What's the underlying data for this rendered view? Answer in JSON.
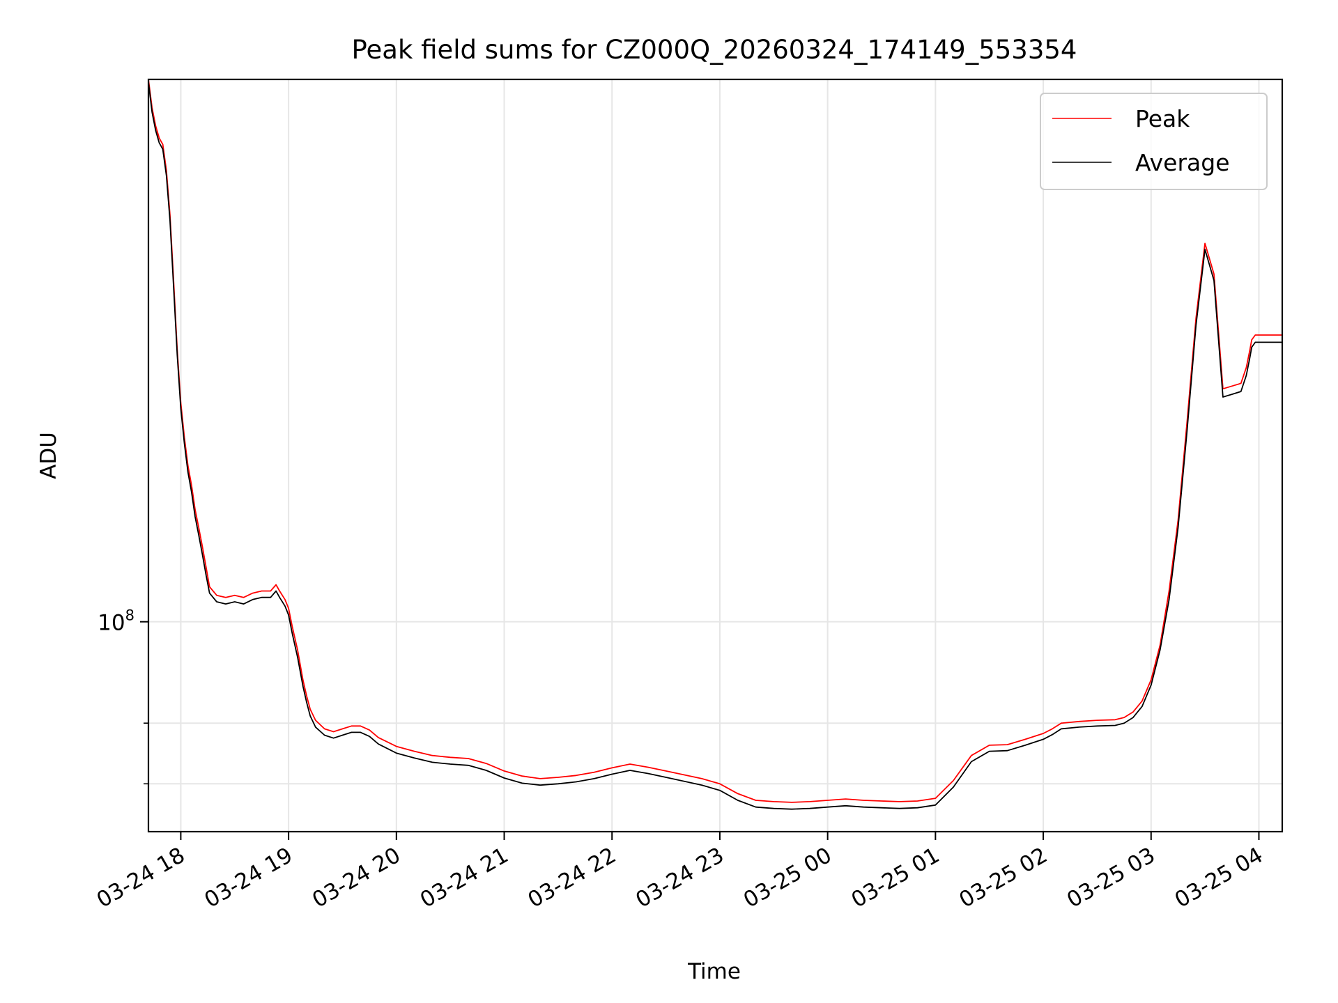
{
  "chart_data": {
    "type": "line",
    "title": "Peak field sums for CZ000Q_20260324_174149_553354",
    "xlabel": "Time",
    "ylabel": "ADU",
    "yscale": "log",
    "grid": true,
    "legend_placement": "upper-right",
    "x_ticks": [
      "03-24 18",
      "03-24 19",
      "03-24 20",
      "03-24 21",
      "03-24 22",
      "03-24 23",
      "03-25 00",
      "03-25 01",
      "03-25 02",
      "03-25 03",
      "03-25 04"
    ],
    "y_ticks_labeled": [
      {
        "value": 100000000,
        "base": "10",
        "exp": "8"
      }
    ],
    "y_minor_ticks": [
      80000000,
      70000000
    ],
    "x_range": [
      "2026-03-24 17:42",
      "2026-03-25 04:13"
    ],
    "y_range": [
      63000000,
      330000000
    ],
    "series": [
      {
        "name": "Peak",
        "color": "#ff0000",
        "x": [
          "17:42",
          "17:44",
          "17:46",
          "17:48",
          "17:50",
          "17:52",
          "17:54",
          "17:56",
          "17:58",
          "18:00",
          "18:02",
          "18:04",
          "18:06",
          "18:08",
          "18:10",
          "18:12",
          "18:14",
          "18:16",
          "18:20",
          "18:25",
          "18:30",
          "18:35",
          "18:40",
          "18:45",
          "18:50",
          "18:53",
          "18:55",
          "18:58",
          "19:00",
          "19:02",
          "19:05",
          "19:08",
          "19:10",
          "19:12",
          "19:15",
          "19:20",
          "19:25",
          "19:30",
          "19:35",
          "19:40",
          "19:45",
          "19:50",
          "20:00",
          "20:10",
          "20:20",
          "20:30",
          "20:40",
          "20:50",
          "21:00",
          "21:10",
          "21:20",
          "21:30",
          "21:40",
          "21:50",
          "22:00",
          "22:10",
          "22:20",
          "22:30",
          "22:40",
          "22:50",
          "23:00",
          "23:10",
          "23:20",
          "23:30",
          "23:40",
          "23:50",
          "00:00",
          "00:10",
          "00:20",
          "00:30",
          "00:40",
          "00:50",
          "01:00",
          "01:10",
          "01:20",
          "01:30",
          "01:40",
          "01:50",
          "02:00",
          "02:05",
          "02:10",
          "02:20",
          "02:30",
          "02:40",
          "02:45",
          "02:50",
          "02:55",
          "03:00",
          "03:05",
          "03:10",
          "03:15",
          "03:20",
          "03:25",
          "03:30",
          "03:35",
          "03:40",
          "03:45",
          "03:50",
          "03:53",
          "03:55",
          "03:56",
          "03:58",
          "04:00",
          "04:02",
          "04:05",
          "04:08",
          "04:10",
          "04:13"
        ],
        "y": [
          330000000,
          310000000,
          298000000,
          290000000,
          286000000,
          270000000,
          245000000,
          212000000,
          182000000,
          162000000,
          150000000,
          141000000,
          135000000,
          128000000,
          123000000,
          118000000,
          113000000,
          108000000,
          106000000,
          105500000,
          106000000,
          105500000,
          106500000,
          107000000,
          107000000,
          108500000,
          107000000,
          105000000,
          103000000,
          99000000,
          94000000,
          88000000,
          85000000,
          82500000,
          80500000,
          79000000,
          78500000,
          79000000,
          79500000,
          79500000,
          78800000,
          77500000,
          76000000,
          75200000,
          74500000,
          74200000,
          74000000,
          73200000,
          72000000,
          71200000,
          70800000,
          71000000,
          71300000,
          71800000,
          72500000,
          73100000,
          72600000,
          72000000,
          71400000,
          70800000,
          70000000,
          68500000,
          67500000,
          67300000,
          67200000,
          67300000,
          67500000,
          67700000,
          67500000,
          67400000,
          67300000,
          67400000,
          67800000,
          70500000,
          74500000,
          76200000,
          76300000,
          77200000,
          78200000,
          79000000,
          80000000,
          80300000,
          80500000,
          80600000,
          81000000,
          82000000,
          84000000,
          88000000,
          95000000,
          107000000,
          125000000,
          155000000,
          195000000,
          230000000,
          215000000,
          167000000,
          168000000,
          169000000,
          175000000,
          182000000,
          186000000,
          188000000,
          188000000,
          188000000,
          188000000,
          188000000,
          188000000,
          188000000
        ]
      },
      {
        "name": "Average",
        "color": "#000000",
        "x": [
          "17:42",
          "17:44",
          "17:46",
          "17:48",
          "17:50",
          "17:52",
          "17:54",
          "17:56",
          "17:58",
          "18:00",
          "18:02",
          "18:04",
          "18:06",
          "18:08",
          "18:10",
          "18:12",
          "18:14",
          "18:16",
          "18:20",
          "18:25",
          "18:30",
          "18:35",
          "18:40",
          "18:45",
          "18:50",
          "18:53",
          "18:55",
          "18:58",
          "19:00",
          "19:02",
          "19:05",
          "19:08",
          "19:10",
          "19:12",
          "19:15",
          "19:20",
          "19:25",
          "19:30",
          "19:35",
          "19:40",
          "19:45",
          "19:50",
          "20:00",
          "20:10",
          "20:20",
          "20:30",
          "20:40",
          "20:50",
          "21:00",
          "21:10",
          "21:20",
          "21:30",
          "21:40",
          "21:50",
          "22:00",
          "22:10",
          "22:20",
          "22:30",
          "22:40",
          "22:50",
          "23:00",
          "23:10",
          "23:20",
          "23:30",
          "23:40",
          "23:50",
          "00:00",
          "00:10",
          "00:20",
          "00:30",
          "00:40",
          "00:50",
          "01:00",
          "01:10",
          "01:20",
          "01:30",
          "01:40",
          "01:50",
          "02:00",
          "02:05",
          "02:10",
          "02:20",
          "02:30",
          "02:40",
          "02:45",
          "02:50",
          "02:55",
          "03:00",
          "03:05",
          "03:10",
          "03:15",
          "03:20",
          "03:25",
          "03:30",
          "03:35",
          "03:40",
          "03:45",
          "03:50",
          "03:53",
          "03:55",
          "03:56",
          "03:58",
          "04:00",
          "04:02",
          "04:05",
          "04:08",
          "04:10",
          "04:13"
        ],
        "y": [
          328000000,
          307000000,
          295000000,
          287000000,
          283000000,
          267000000,
          242000000,
          209000000,
          180000000,
          160000000,
          148000000,
          139000000,
          133000000,
          126000000,
          121000000,
          116000000,
          111000000,
          106500000,
          104500000,
          104000000,
          104500000,
          104000000,
          105000000,
          105500000,
          105500000,
          107000000,
          105500000,
          103500000,
          101500000,
          97500000,
          92500000,
          86800000,
          83800000,
          81300000,
          79300000,
          77900000,
          77400000,
          77900000,
          78400000,
          78400000,
          77700000,
          76400000,
          74900000,
          74100000,
          73400000,
          73100000,
          72900000,
          72100000,
          70900000,
          70100000,
          69800000,
          70000000,
          70300000,
          70800000,
          71500000,
          72100000,
          71600000,
          71000000,
          70400000,
          69800000,
          69000000,
          67500000,
          66500000,
          66300000,
          66200000,
          66300000,
          66500000,
          66700000,
          66500000,
          66400000,
          66300000,
          66400000,
          66800000,
          69500000,
          73500000,
          75200000,
          75300000,
          76200000,
          77200000,
          78000000,
          79000000,
          79300000,
          79500000,
          79600000,
          80000000,
          81000000,
          83000000,
          87000000,
          94000000,
          105000000,
          123000000,
          152000000,
          192000000,
          227000000,
          212000000,
          164000000,
          165000000,
          166000000,
          172000000,
          179000000,
          183000000,
          185000000,
          185000000,
          185000000,
          185000000,
          185000000,
          185000000,
          185000000
        ]
      }
    ]
  }
}
